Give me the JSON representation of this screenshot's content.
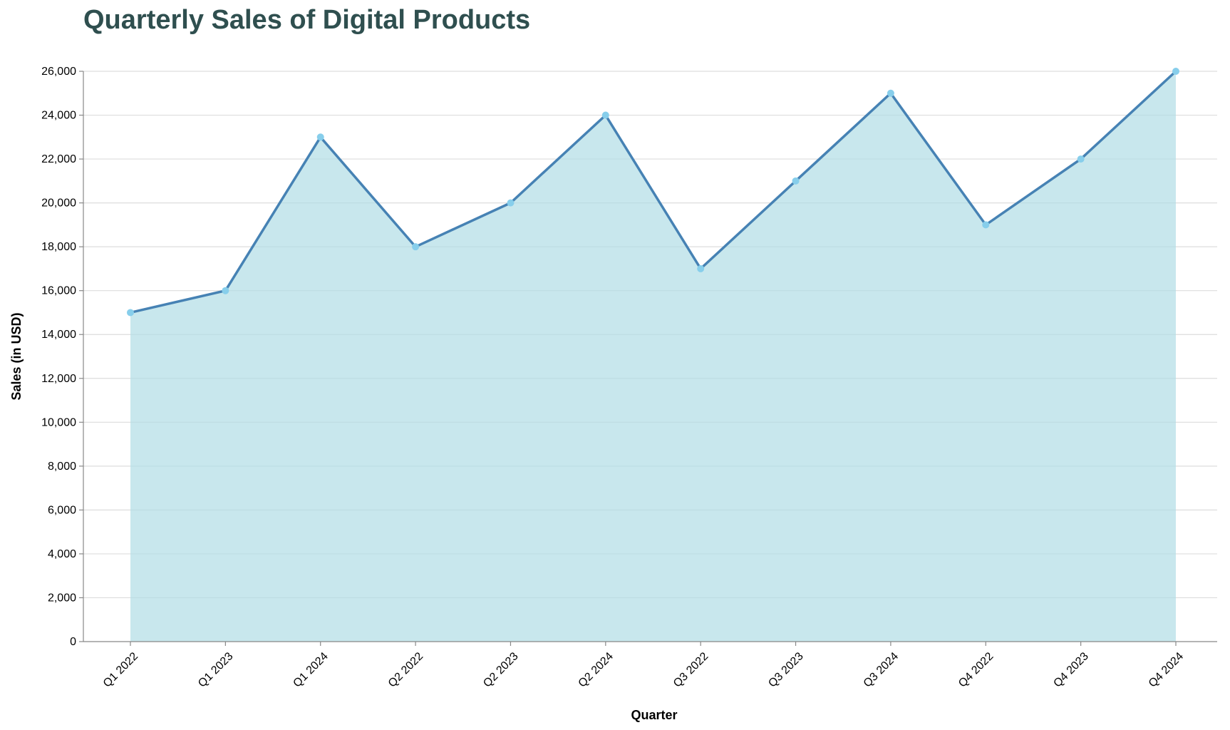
{
  "chart_data": {
    "type": "area",
    "title": "Quarterly Sales of Digital Products",
    "xlabel": "Quarter",
    "ylabel": "Sales (in USD)",
    "categories": [
      "Q1 2022",
      "Q1 2023",
      "Q1 2024",
      "Q2 2022",
      "Q2 2023",
      "Q2 2024",
      "Q3 2022",
      "Q3 2023",
      "Q3 2024",
      "Q4 2022",
      "Q4 2023",
      "Q4 2024"
    ],
    "values": [
      15000,
      16000,
      23000,
      18000,
      20000,
      24000,
      17000,
      21000,
      25000,
      19000,
      22000,
      26000
    ],
    "ylim": [
      0,
      26000
    ],
    "yticks": [
      0,
      2000,
      4000,
      6000,
      8000,
      10000,
      12000,
      14000,
      16000,
      18000,
      20000,
      22000,
      24000,
      26000
    ],
    "ytick_labels": [
      "0",
      "2,000",
      "4,000",
      "6,000",
      "8,000",
      "10,000",
      "12,000",
      "14,000",
      "16,000",
      "18,000",
      "20,000",
      "22,000",
      "24,000",
      "26,000"
    ],
    "grid": true,
    "colors": {
      "area_fill": "#b0dde6",
      "line": "#4682b4",
      "point": "#87ceeb",
      "title": "#2f4f4f"
    }
  }
}
